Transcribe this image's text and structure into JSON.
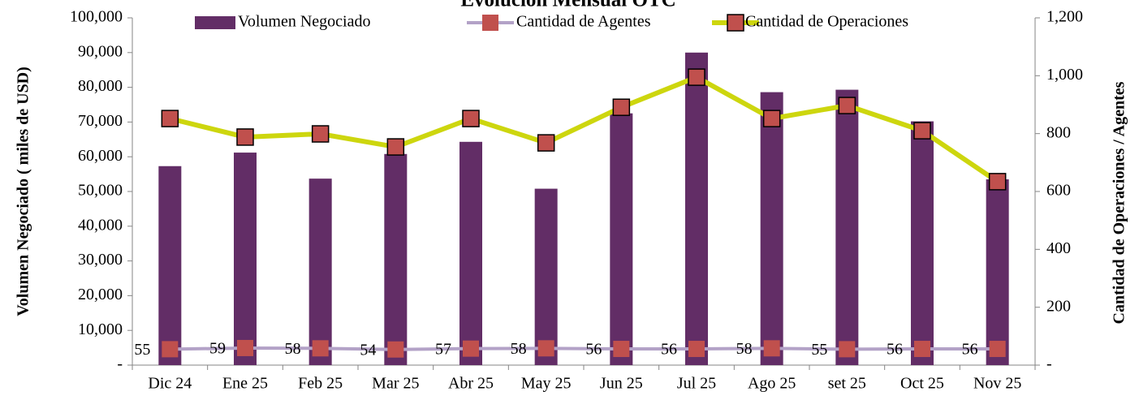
{
  "chart_data": {
    "type": "bar_line",
    "title": "Evolución Mensual OTC",
    "y_label": "Volumen Negociado ( miles de USD)",
    "y2_label": "Cantidad de Operaciones / Agentes",
    "categories": [
      "Dic 24",
      "Ene 25",
      "Feb 25",
      "Mar 25",
      "Abr 25",
      "May 25",
      "Jun 25",
      "Jul 25",
      "Ago 25",
      "set 25",
      "Oct 25",
      "Nov 25"
    ],
    "series": [
      {
        "name": "Volumen Negociado",
        "type": "bar",
        "color": "#622d66",
        "values": [
          57300,
          61200,
          53700,
          60800,
          64300,
          50800,
          72500,
          90000,
          78600,
          79300,
          70200,
          53500
        ]
      },
      {
        "name": "Cantidad de Agentes",
        "type": "line",
        "axis": "y2",
        "color": "#b3a2c7",
        "marker_color": "#c0504d",
        "data_labels": true,
        "values": [
          55,
          59,
          58,
          54,
          57,
          58,
          56,
          56,
          58,
          55,
          56,
          56
        ]
      },
      {
        "name": "Cantidad de Operaciones",
        "type": "line",
        "axis": "y2",
        "color": "#cdd60e",
        "marker_color": "#c0504d",
        "marker_edge_color": "#000000",
        "values": [
          852,
          788,
          799,
          754,
          852,
          768,
          891,
          995,
          852,
          897,
          810,
          634
        ]
      }
    ],
    "ylim": [
      0,
      100000
    ],
    "yticks": [
      {
        "value": 0,
        "label": "-"
      },
      {
        "value": 10000,
        "label": "10,000"
      },
      {
        "value": 20000,
        "label": "20,000"
      },
      {
        "value": 30000,
        "label": "30,000"
      },
      {
        "value": 40000,
        "label": "40,000"
      },
      {
        "value": 50000,
        "label": "50,000"
      },
      {
        "value": 60000,
        "label": "60,000"
      },
      {
        "value": 70000,
        "label": "70,000"
      },
      {
        "value": 80000,
        "label": "80,000"
      },
      {
        "value": 90000,
        "label": "90,000"
      },
      {
        "value": 100000,
        "label": "100,000"
      }
    ],
    "y2lim": [
      0,
      1200
    ],
    "y2ticks": [
      {
        "value": 0,
        "label": "-"
      },
      200,
      400,
      600,
      800,
      {
        "value": 1000,
        "label": "1,000"
      },
      {
        "value": 1200,
        "label": "1,200"
      }
    ],
    "legend": "top"
  }
}
